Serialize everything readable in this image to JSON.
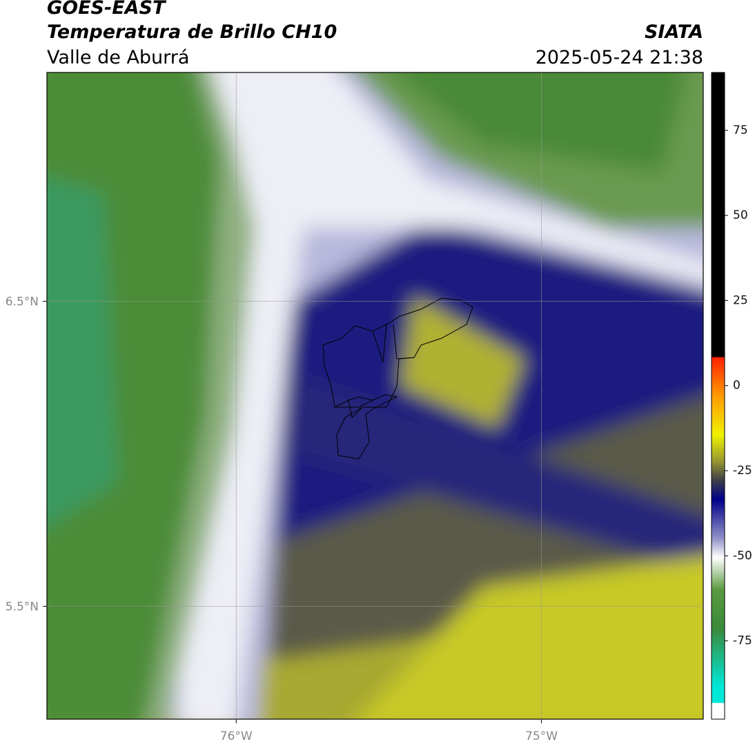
{
  "header": {
    "satellite": "GOES-EAST",
    "product": "Temperatura de Brillo CH10",
    "region": "Valle de Aburrá",
    "source": "SIATA",
    "datetime": "2025-05-24 21:38"
  },
  "map": {
    "xlim": [
      -76.62,
      -74.47
    ],
    "ylim": [
      5.13,
      7.25
    ],
    "xticks": [
      {
        "value": -76,
        "label": "76°W"
      },
      {
        "value": -75,
        "label": "75°W"
      }
    ],
    "yticks": [
      {
        "value": 6.5,
        "label": "6.5°N"
      },
      {
        "value": 5.5,
        "label": "5.5°N"
      }
    ],
    "grid": true
  },
  "colorbar": {
    "lim": [
      -98,
      92
    ],
    "ticks": [
      75,
      50,
      25,
      0,
      -25,
      -50,
      -75
    ]
  }
}
